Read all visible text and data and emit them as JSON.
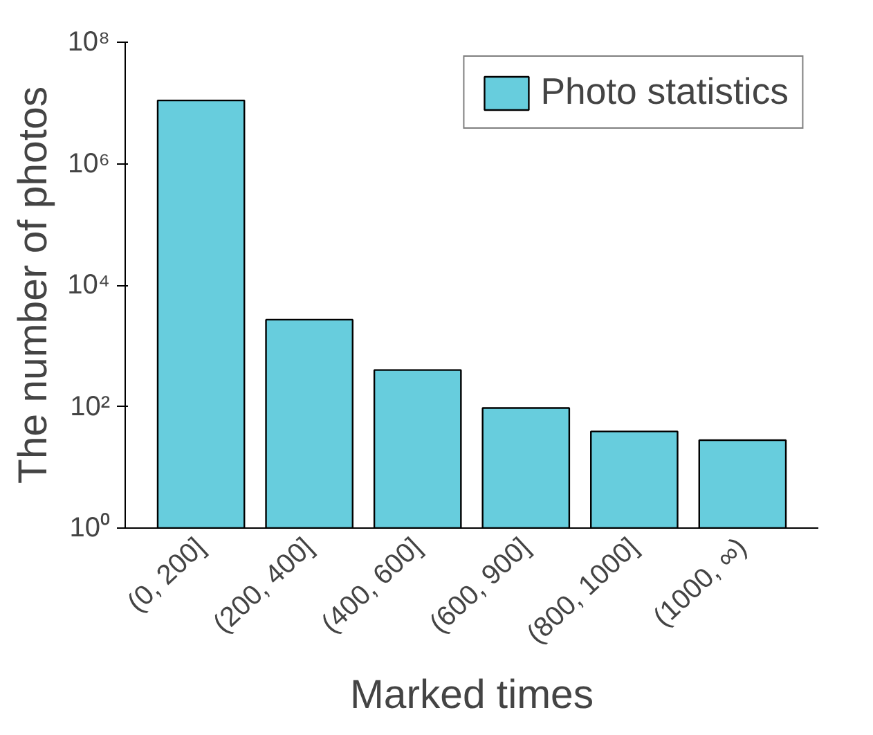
{
  "chart_data": {
    "type": "bar",
    "xlabel": "Marked times",
    "ylabel": "The number of photos",
    "categories": [
      "(0, 200]",
      "(200, 400]",
      "(400, 600]",
      "(600, 900]",
      "(800, 1000]",
      "(1000, ∞)"
    ],
    "series": [
      {
        "name": "Photo statistics",
        "color": "#67cddd",
        "values": [
          11000000,
          2700,
          400,
          95,
          39,
          28
        ]
      }
    ],
    "log": "y",
    "ylim": [
      1,
      100000000
    ],
    "yticks": [
      {
        "value": 1,
        "label": "10⁰"
      },
      {
        "value": 100,
        "label": "10²"
      },
      {
        "value": 10000,
        "label": "10⁴"
      },
      {
        "value": 1000000,
        "label": "10⁶"
      },
      {
        "value": 100000000,
        "label": "10⁸"
      }
    ],
    "grid": false,
    "legend": "top right"
  }
}
